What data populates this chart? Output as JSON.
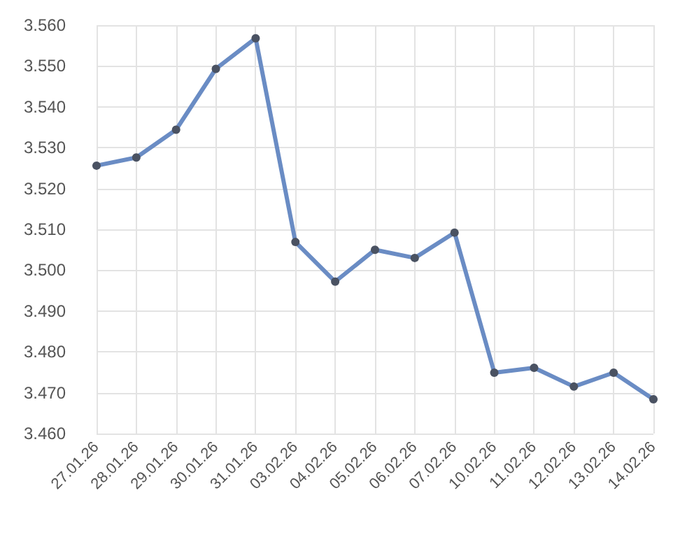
{
  "chart_data": {
    "type": "line",
    "categories": [
      "27.01.26",
      "28.01.26",
      "29.01.26",
      "30.01.26",
      "31.01.26",
      "03.02.26",
      "04.02.26",
      "05.02.26",
      "06.02.26",
      "07.02.26",
      "10.02.26",
      "11.02.26",
      "12.02.26",
      "13.02.26",
      "14.02.26"
    ],
    "series": [
      {
        "color": "#6a8cc4",
        "values": [
          3.5256,
          3.5276,
          3.5344,
          3.5493,
          3.5568,
          3.5069,
          3.4972,
          3.505,
          3.503,
          3.5092,
          3.4749,
          3.4761,
          3.4715,
          3.4749,
          3.4684
        ]
      }
    ],
    "ylim": [
      3.46,
      3.56
    ],
    "yticks": [
      {
        "value": 3.46,
        "label": "3.460"
      },
      {
        "value": 3.47,
        "label": "3.470"
      },
      {
        "value": 3.48,
        "label": "3.480"
      },
      {
        "value": 3.49,
        "label": "3.490"
      },
      {
        "value": 3.5,
        "label": "3.500"
      },
      {
        "value": 3.51,
        "label": "3.510"
      },
      {
        "value": 3.52,
        "label": "3.520"
      },
      {
        "value": 3.53,
        "label": "3.530"
      },
      {
        "value": 3.54,
        "label": "3.540"
      },
      {
        "value": 3.55,
        "label": "3.550"
      },
      {
        "value": 3.56,
        "label": "3.560"
      }
    ],
    "grid": true,
    "marker": "circle",
    "line_style": "solid"
  }
}
